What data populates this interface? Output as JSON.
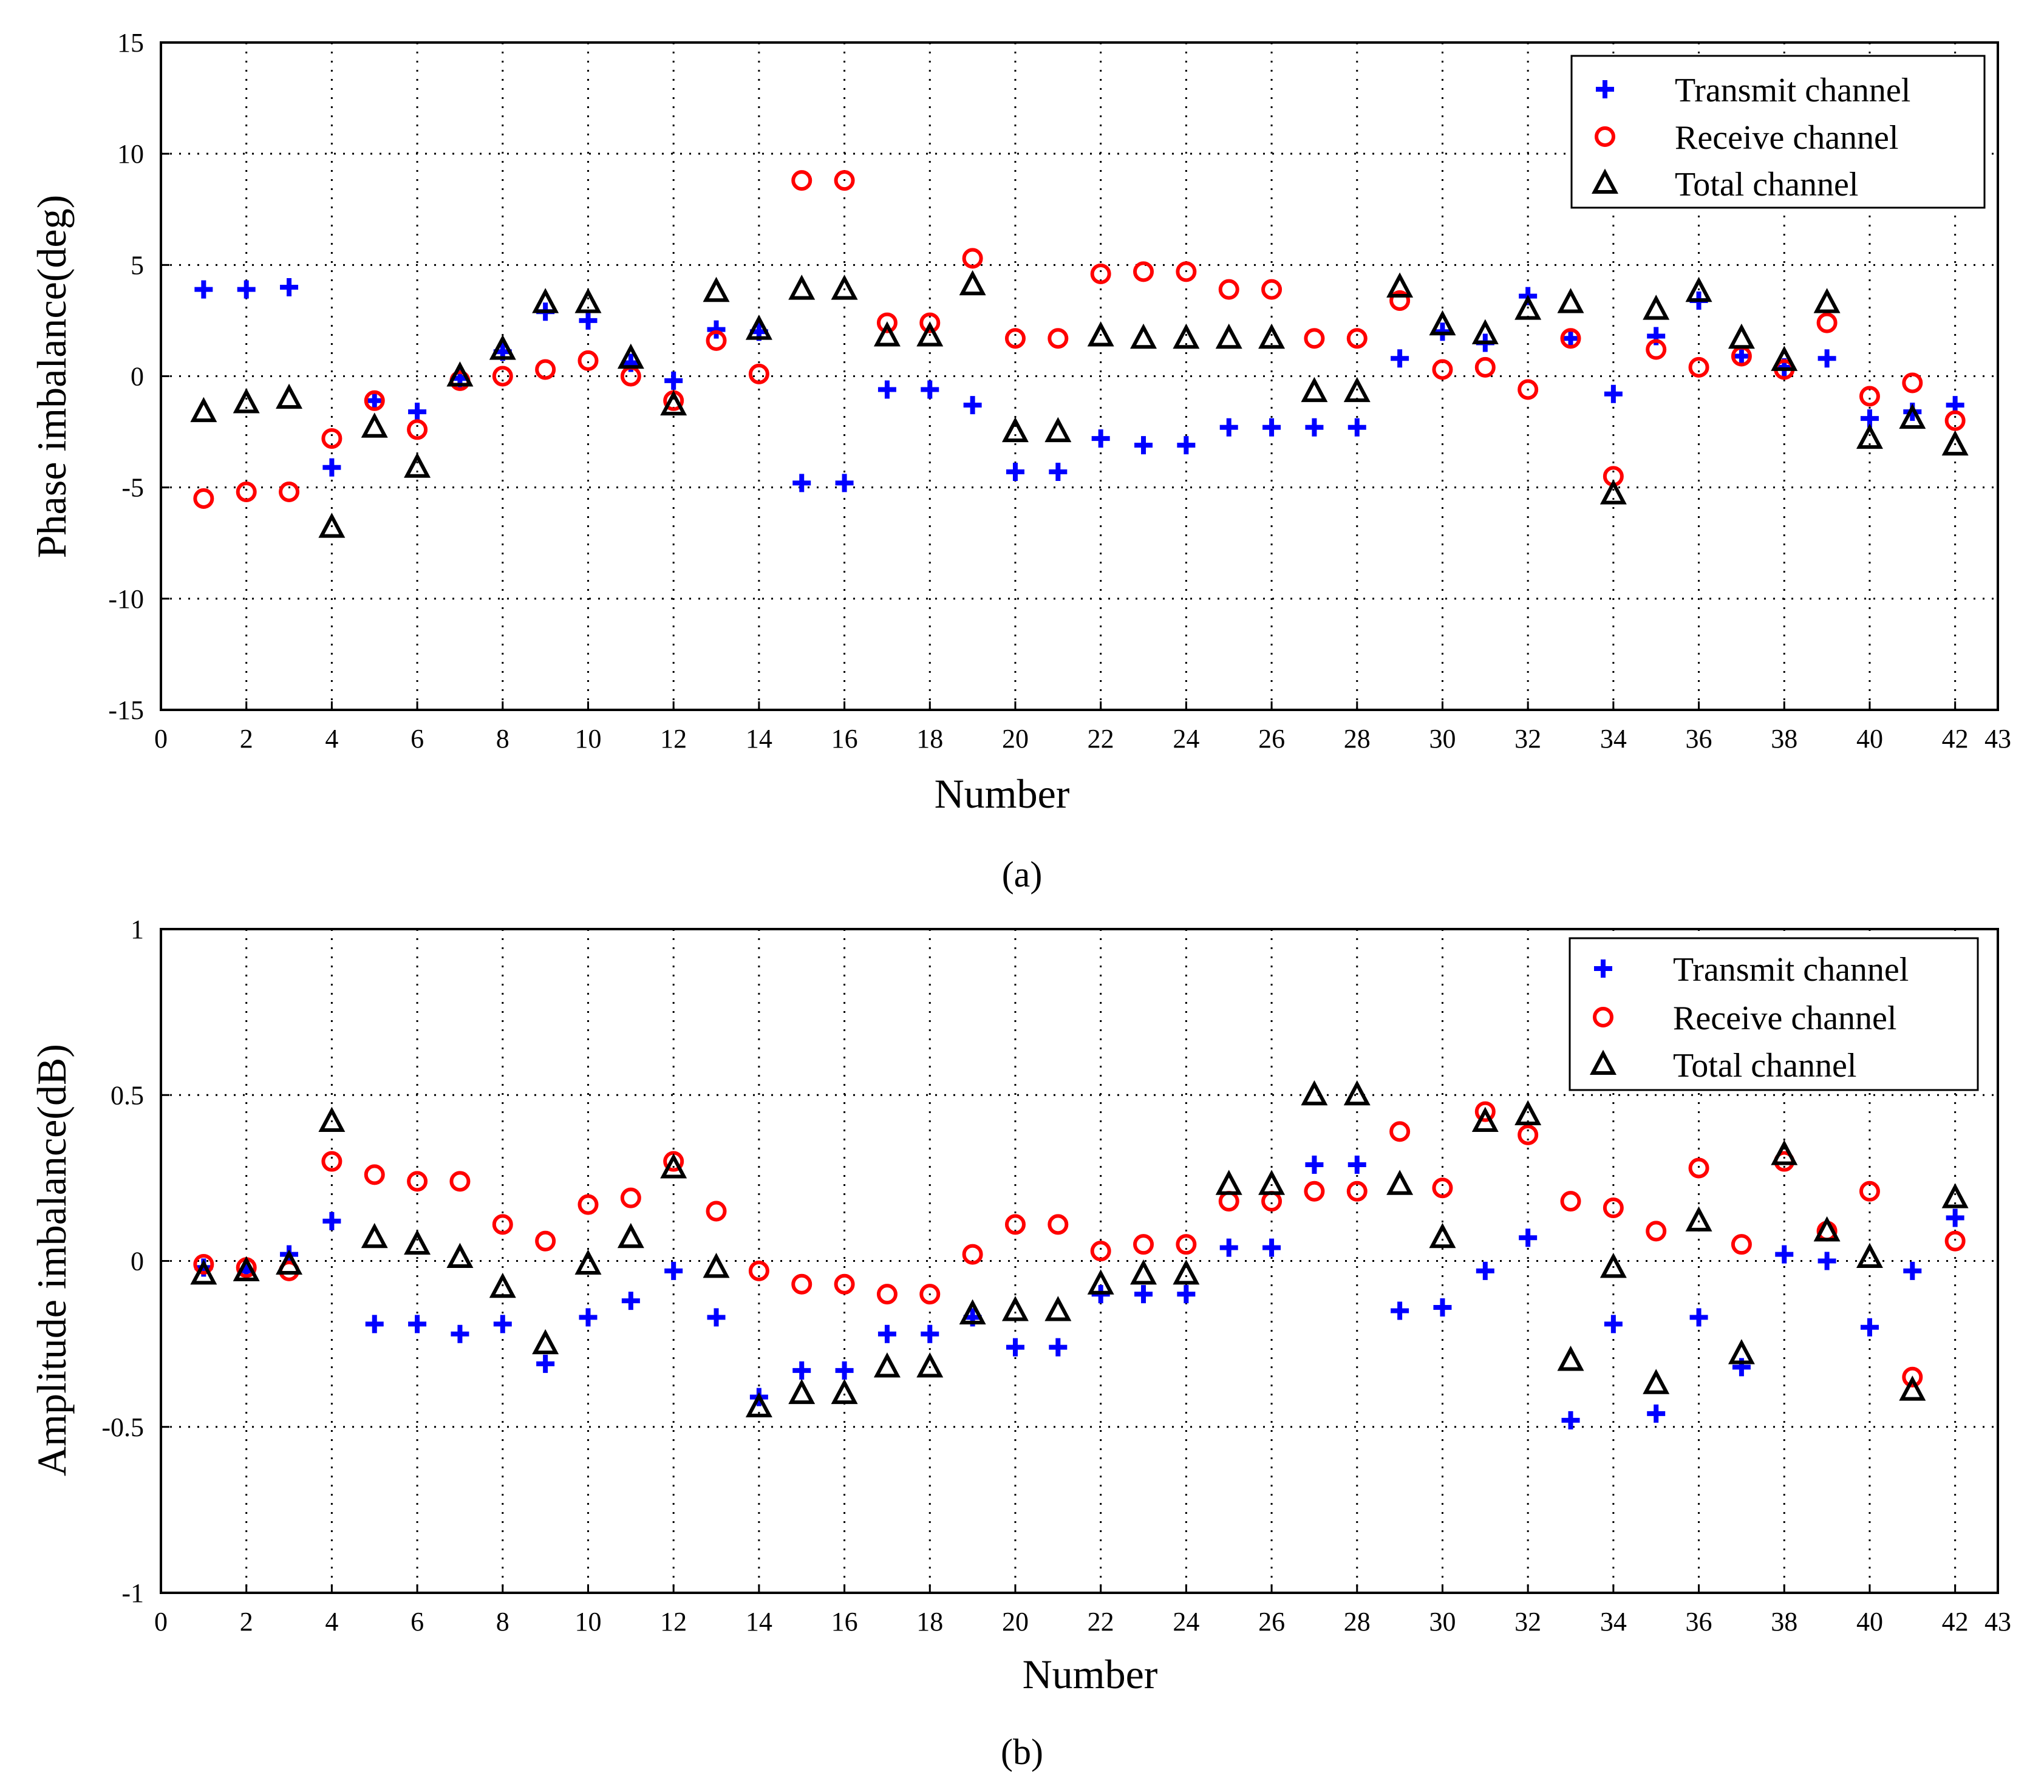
{
  "colors": {
    "transmit": "#0000ff",
    "receive": "#ff0000",
    "total": "#000000",
    "grid": "#000000",
    "background": "#ffffff"
  },
  "chart_data": [
    {
      "type": "scatter",
      "panel_label": "(a)",
      "xlabel": "Number",
      "ylabel": "Phase imbalance(deg)",
      "xlim": [
        0,
        43
      ],
      "ylim": [
        -15,
        15
      ],
      "xticks": [
        0,
        2,
        4,
        6,
        8,
        10,
        12,
        14,
        16,
        18,
        20,
        22,
        24,
        26,
        28,
        30,
        32,
        34,
        36,
        38,
        40,
        42,
        43
      ],
      "yticks": [
        -15,
        -10,
        -5,
        0,
        5,
        10,
        15
      ],
      "grid": true,
      "legend_position": "top-right",
      "x": [
        1,
        2,
        3,
        4,
        5,
        6,
        7,
        8,
        9,
        10,
        11,
        12,
        13,
        14,
        15,
        16,
        17,
        18,
        19,
        20,
        21,
        22,
        23,
        24,
        25,
        26,
        27,
        28,
        29,
        30,
        31,
        32,
        33,
        34,
        35,
        36,
        37,
        38,
        39,
        40,
        41,
        42
      ],
      "series": [
        {
          "name": "Transmit channel",
          "marker": "plus",
          "color_key": "transmit",
          "values": [
            3.9,
            3.9,
            4.0,
            -4.1,
            -1.1,
            -1.6,
            -0.1,
            1.1,
            2.9,
            2.5,
            0.6,
            -0.2,
            2.1,
            2.0,
            -4.8,
            -4.8,
            -0.6,
            -0.6,
            -1.3,
            -4.3,
            -4.3,
            -2.8,
            -3.1,
            -3.1,
            -2.3,
            -2.3,
            -2.3,
            -2.3,
            0.8,
            2.0,
            1.5,
            3.6,
            1.7,
            -0.8,
            1.8,
            3.4,
            0.9,
            0.4,
            0.8,
            -1.9,
            -1.6,
            -1.3
          ]
        },
        {
          "name": "Receive channel",
          "marker": "circle",
          "color_key": "receive",
          "values": [
            -5.5,
            -5.2,
            -5.2,
            -2.8,
            -1.1,
            -2.4,
            -0.2,
            0.0,
            0.3,
            0.7,
            0.0,
            -1.1,
            1.6,
            0.1,
            8.8,
            8.8,
            2.4,
            2.4,
            5.3,
            1.7,
            1.7,
            4.6,
            4.7,
            4.7,
            3.9,
            3.9,
            1.7,
            1.7,
            3.4,
            0.3,
            0.4,
            -0.6,
            1.7,
            -4.5,
            1.2,
            0.4,
            0.9,
            0.3,
            2.4,
            -0.9,
            -0.3,
            -2.0
          ]
        },
        {
          "name": "Total channel",
          "marker": "triangle",
          "color_key": "total",
          "values": [
            -1.6,
            -1.2,
            -1.0,
            -6.8,
            -2.3,
            -4.1,
            0.0,
            1.2,
            3.3,
            3.3,
            0.8,
            -1.3,
            3.8,
            2.1,
            3.9,
            3.9,
            1.8,
            1.8,
            4.1,
            -2.5,
            -2.5,
            1.8,
            1.7,
            1.7,
            1.7,
            1.7,
            -0.7,
            -0.7,
            4.0,
            2.3,
            1.9,
            3.0,
            3.3,
            -5.3,
            3.0,
            3.8,
            1.7,
            0.7,
            3.3,
            -2.8,
            -1.9,
            -3.1
          ]
        }
      ]
    },
    {
      "type": "scatter",
      "panel_label": "(b)",
      "xlabel": "Number",
      "ylabel": "Amplitude imbalance(dB)",
      "xlim": [
        0,
        43
      ],
      "ylim": [
        -1,
        1
      ],
      "xticks": [
        0,
        2,
        4,
        6,
        8,
        10,
        12,
        14,
        16,
        18,
        20,
        22,
        24,
        26,
        28,
        30,
        32,
        34,
        36,
        38,
        40,
        42,
        43
      ],
      "yticks": [
        -1,
        -0.5,
        0,
        0.5,
        1
      ],
      "grid": true,
      "legend_position": "top-right",
      "x": [
        1,
        2,
        3,
        4,
        5,
        6,
        7,
        8,
        9,
        10,
        11,
        12,
        13,
        14,
        15,
        16,
        17,
        18,
        19,
        20,
        21,
        22,
        23,
        24,
        25,
        26,
        27,
        28,
        29,
        30,
        31,
        32,
        33,
        34,
        35,
        36,
        37,
        38,
        39,
        40,
        41,
        42
      ],
      "series": [
        {
          "name": "Transmit channel",
          "marker": "plus",
          "color_key": "transmit",
          "values": [
            -0.02,
            -0.03,
            0.02,
            0.12,
            -0.19,
            -0.19,
            -0.22,
            -0.19,
            -0.31,
            -0.17,
            -0.12,
            -0.03,
            -0.17,
            -0.41,
            -0.33,
            -0.33,
            -0.22,
            -0.22,
            -0.17,
            -0.26,
            -0.26,
            -0.1,
            -0.1,
            -0.1,
            0.04,
            0.04,
            0.29,
            0.29,
            -0.15,
            -0.14,
            -0.03,
            0.07,
            -0.48,
            -0.19,
            -0.46,
            -0.17,
            -0.32,
            0.02,
            0.0,
            -0.2,
            -0.03,
            0.13
          ]
        },
        {
          "name": "Receive channel",
          "marker": "circle",
          "color_key": "receive",
          "values": [
            -0.01,
            -0.02,
            -0.03,
            0.3,
            0.26,
            0.24,
            0.24,
            0.11,
            0.06,
            0.17,
            0.19,
            0.3,
            0.15,
            -0.03,
            -0.07,
            -0.07,
            -0.1,
            -0.1,
            0.02,
            0.11,
            0.11,
            0.03,
            0.05,
            0.05,
            0.18,
            0.18,
            0.21,
            0.21,
            0.39,
            0.22,
            0.45,
            0.38,
            0.18,
            0.16,
            0.09,
            0.28,
            0.05,
            0.3,
            0.09,
            0.21,
            -0.35,
            0.06
          ]
        },
        {
          "name": "Total channel",
          "marker": "triangle",
          "color_key": "total",
          "values": [
            -0.04,
            -0.03,
            -0.01,
            0.42,
            0.07,
            0.05,
            0.01,
            -0.08,
            -0.25,
            -0.01,
            0.07,
            0.28,
            -0.02,
            -0.44,
            -0.4,
            -0.4,
            -0.32,
            -0.32,
            -0.16,
            -0.15,
            -0.15,
            -0.07,
            -0.04,
            -0.04,
            0.23,
            0.23,
            0.5,
            0.5,
            0.23,
            0.07,
            0.42,
            0.44,
            -0.3,
            -0.02,
            -0.37,
            0.12,
            -0.28,
            0.32,
            0.09,
            0.01,
            -0.39,
            0.19
          ]
        }
      ]
    }
  ]
}
